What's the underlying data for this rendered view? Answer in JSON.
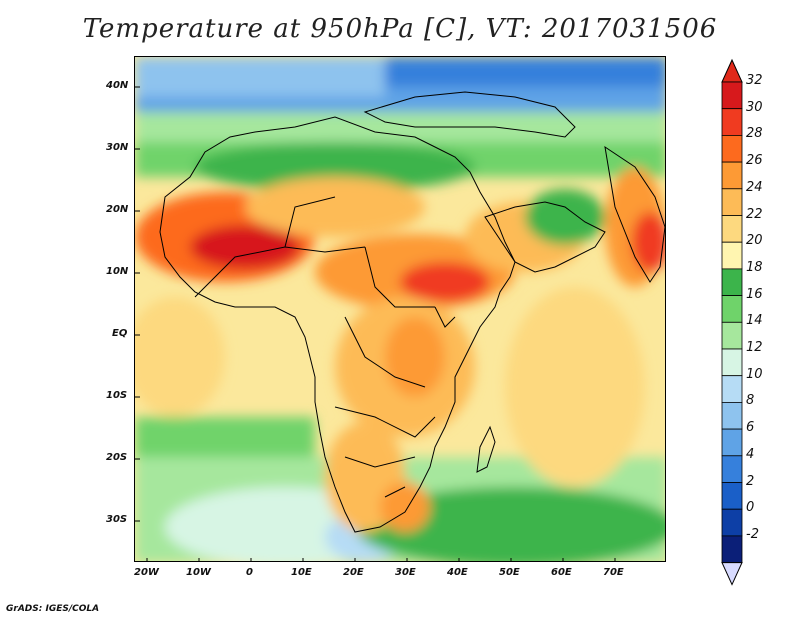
{
  "title": "Temperature at 950hPa [C], VT: 2017031506",
  "footer": "GrADS: IGES/COLA",
  "map": {
    "lat_labels": [
      "40N",
      "30N",
      "20N",
      "10N",
      "EQ",
      "10S",
      "20S",
      "30S"
    ],
    "lon_labels": [
      "20W",
      "10W",
      "0",
      "10E",
      "20E",
      "30E",
      "40E",
      "50E",
      "60E",
      "70E"
    ],
    "field": "temperature",
    "units": "C",
    "level": "950hPa",
    "valid_time": "2017031506"
  },
  "colorbar": {
    "labels": [
      "32",
      "30",
      "28",
      "26",
      "24",
      "22",
      "20",
      "18",
      "16",
      "14",
      "12",
      "10",
      "8",
      "6",
      "4",
      "2",
      "0",
      "-2"
    ],
    "colors": [
      "#d7191c",
      "#f03b20",
      "#fd6a1e",
      "#fd9a35",
      "#fdbb57",
      "#fdd97f",
      "#fff5b0",
      "#3cb44b",
      "#6fd36a",
      "#a6e79d",
      "#d7f5e4",
      "#b6dcf5",
      "#8ec3ee",
      "#5fa3e6",
      "#3680dc",
      "#1a5fc8",
      "#0d3fa6",
      "#0b1f78"
    ],
    "top_triangle_color": "#e0291a",
    "bottom_triangle_color": "#d8dbff"
  }
}
